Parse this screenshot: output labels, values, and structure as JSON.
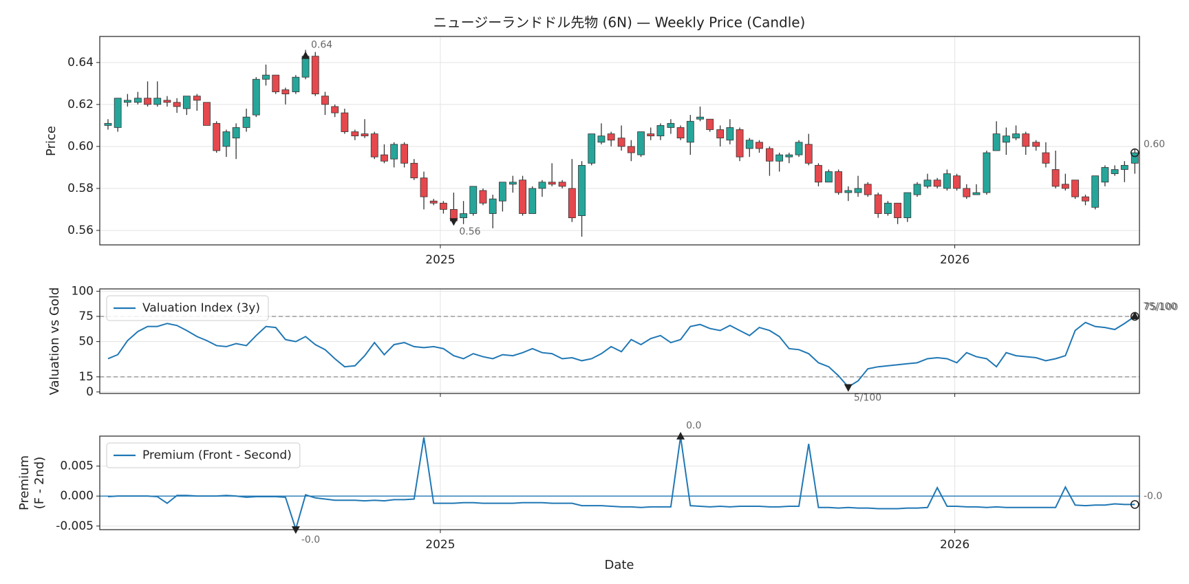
{
  "chart_data": [
    {
      "type": "candlestick",
      "title": "ニュージーランドドル先物 (6N) — Weekly Price (Candle)",
      "ylabel": "Price",
      "x": [
        2024.354,
        2024.373,
        2024.392,
        2024.412,
        2024.431,
        2024.45,
        2024.469,
        2024.488,
        2024.507,
        2024.527,
        2024.546,
        2024.565,
        2024.584,
        2024.603,
        2024.623,
        2024.642,
        2024.661,
        2024.68,
        2024.699,
        2024.719,
        2024.738,
        2024.757,
        2024.776,
        2024.795,
        2024.814,
        2024.834,
        2024.853,
        2024.872,
        2024.891,
        2024.91,
        2024.93,
        2024.949,
        2024.968,
        2024.987,
        2025.006,
        2025.026,
        2025.045,
        2025.064,
        2025.083,
        2025.102,
        2025.121,
        2025.141,
        2025.16,
        2025.179,
        2025.198,
        2025.217,
        2025.237,
        2025.256,
        2025.275,
        2025.294,
        2025.313,
        2025.332,
        2025.352,
        2025.371,
        2025.39,
        2025.409,
        2025.428,
        2025.448,
        2025.467,
        2025.486,
        2025.505,
        2025.524,
        2025.544,
        2025.563,
        2025.582,
        2025.601,
        2025.62,
        2025.64,
        2025.659,
        2025.678,
        2025.697,
        2025.716,
        2025.735,
        2025.755,
        2025.774,
        2025.793,
        2025.812,
        2025.831,
        2025.851,
        2025.87,
        2025.889,
        2025.908,
        2025.927,
        2025.947,
        2025.966,
        2025.985,
        2026.004,
        2026.023,
        2026.042,
        2026.062,
        2026.081,
        2026.1,
        2026.119,
        2026.138,
        2026.158,
        2026.177,
        2026.196,
        2026.215,
        2026.234,
        2026.254,
        2026.273,
        2026.292,
        2026.311,
        2026.33,
        2026.35
      ],
      "open": [
        0.61,
        0.609,
        0.621,
        0.621,
        0.623,
        0.62,
        0.622,
        0.621,
        0.618,
        0.624,
        0.621,
        0.611,
        0.6,
        0.604,
        0.609,
        0.615,
        0.632,
        0.634,
        0.627,
        0.626,
        0.633,
        0.643,
        0.624,
        0.619,
        0.616,
        0.607,
        0.606,
        0.606,
        0.596,
        0.594,
        0.601,
        0.592,
        0.585,
        0.574,
        0.573,
        0.57,
        0.566,
        0.568,
        0.579,
        0.568,
        0.574,
        0.582,
        0.584,
        0.568,
        0.58,
        0.583,
        0.583,
        0.58,
        0.567,
        0.592,
        0.602,
        0.606,
        0.604,
        0.6,
        0.596,
        0.606,
        0.605,
        0.609,
        0.609,
        0.602,
        0.613,
        0.613,
        0.608,
        0.603,
        0.608,
        0.599,
        0.602,
        0.599,
        0.593,
        0.595,
        0.596,
        0.601,
        0.591,
        0.583,
        0.588,
        0.578,
        0.578,
        0.582,
        0.577,
        0.568,
        0.573,
        0.566,
        0.577,
        0.581,
        0.584,
        0.58,
        0.586,
        0.58,
        0.577,
        0.578,
        0.598,
        0.602,
        0.604,
        0.606,
        0.602,
        0.597,
        0.589,
        0.582,
        0.584,
        0.576,
        0.571,
        0.583,
        0.587,
        0.589,
        0.592
      ],
      "high": [
        0.613,
        0.623,
        0.625,
        0.626,
        0.631,
        0.631,
        0.624,
        0.623,
        0.624,
        0.625,
        0.621,
        0.612,
        0.608,
        0.611,
        0.618,
        0.633,
        0.639,
        0.634,
        0.628,
        0.634,
        0.646,
        0.645,
        0.626,
        0.62,
        0.618,
        0.608,
        0.613,
        0.607,
        0.601,
        0.602,
        0.602,
        0.594,
        0.588,
        0.575,
        0.574,
        0.578,
        0.574,
        0.581,
        0.58,
        0.577,
        0.583,
        0.586,
        0.586,
        0.581,
        0.584,
        0.592,
        0.584,
        0.594,
        0.593,
        0.606,
        0.611,
        0.607,
        0.61,
        0.603,
        0.607,
        0.609,
        0.611,
        0.613,
        0.61,
        0.615,
        0.619,
        0.613,
        0.61,
        0.613,
        0.609,
        0.604,
        0.603,
        0.6,
        0.597,
        0.597,
        0.603,
        0.606,
        0.592,
        0.589,
        0.589,
        0.581,
        0.586,
        0.583,
        0.578,
        0.574,
        0.573,
        0.578,
        0.583,
        0.587,
        0.585,
        0.589,
        0.587,
        0.582,
        0.582,
        0.598,
        0.612,
        0.609,
        0.61,
        0.607,
        0.603,
        0.602,
        0.598,
        0.587,
        0.584,
        0.577,
        0.586,
        0.591,
        0.591,
        0.593,
        0.599
      ],
      "low": [
        0.608,
        0.607,
        0.619,
        0.62,
        0.619,
        0.619,
        0.619,
        0.616,
        0.615,
        0.617,
        0.61,
        0.597,
        0.595,
        0.594,
        0.607,
        0.614,
        0.629,
        0.625,
        0.62,
        0.625,
        0.632,
        0.624,
        0.615,
        0.614,
        0.606,
        0.603,
        0.604,
        0.594,
        0.592,
        0.59,
        0.59,
        0.584,
        0.57,
        0.572,
        0.568,
        0.564,
        0.563,
        0.567,
        0.572,
        0.561,
        0.569,
        0.578,
        0.567,
        0.568,
        0.576,
        0.581,
        0.58,
        0.564,
        0.557,
        0.591,
        0.601,
        0.6,
        0.598,
        0.593,
        0.595,
        0.603,
        0.603,
        0.606,
        0.603,
        0.596,
        0.612,
        0.607,
        0.6,
        0.601,
        0.593,
        0.595,
        0.597,
        0.586,
        0.588,
        0.592,
        0.595,
        0.591,
        0.581,
        0.583,
        0.577,
        0.574,
        0.576,
        0.576,
        0.566,
        0.567,
        0.563,
        0.564,
        0.576,
        0.58,
        0.58,
        0.579,
        0.579,
        0.575,
        0.577,
        0.577,
        0.598,
        0.596,
        0.603,
        0.596,
        0.598,
        0.59,
        0.58,
        0.579,
        0.575,
        0.572,
        0.57,
        0.581,
        0.586,
        0.583,
        0.587
      ],
      "close": [
        0.611,
        0.623,
        0.622,
        0.623,
        0.62,
        0.623,
        0.621,
        0.619,
        0.624,
        0.622,
        0.61,
        0.598,
        0.607,
        0.609,
        0.614,
        0.632,
        0.634,
        0.626,
        0.625,
        0.633,
        0.643,
        0.625,
        0.62,
        0.616,
        0.607,
        0.605,
        0.605,
        0.595,
        0.593,
        0.601,
        0.592,
        0.585,
        0.576,
        0.573,
        0.57,
        0.5645,
        0.568,
        0.581,
        0.573,
        0.575,
        0.583,
        0.583,
        0.568,
        0.58,
        0.583,
        0.582,
        0.581,
        0.566,
        0.591,
        0.606,
        0.605,
        0.603,
        0.6,
        0.597,
        0.607,
        0.605,
        0.61,
        0.611,
        0.604,
        0.612,
        0.614,
        0.608,
        0.604,
        0.609,
        0.595,
        0.603,
        0.599,
        0.593,
        0.596,
        0.596,
        0.602,
        0.592,
        0.583,
        0.588,
        0.578,
        0.579,
        0.58,
        0.577,
        0.568,
        0.573,
        0.566,
        0.578,
        0.582,
        0.584,
        0.581,
        0.587,
        0.58,
        0.576,
        0.578,
        0.597,
        0.606,
        0.605,
        0.606,
        0.6,
        0.6,
        0.592,
        0.581,
        0.58,
        0.576,
        0.574,
        0.586,
        0.59,
        0.589,
        0.591,
        0.597
      ],
      "up_color": "#26a69a",
      "down_color": "#e5484d",
      "xlim": [
        2024.338,
        2026.359
      ],
      "xticks": [
        2025,
        2026
      ],
      "ylim": [
        0.5531,
        0.6524
      ],
      "yticks": [
        0.56,
        0.58,
        {
          "value": 0.6,
          "label": "0.60"
        },
        0.62,
        0.64
      ],
      "grid": true,
      "annotations": {
        "max": "0.64",
        "min": "0.56",
        "last": "0.60"
      }
    },
    {
      "type": "line",
      "ylabel": "Valuation vs Gold",
      "series": [
        {
          "name": "Valuation Index (3y)",
          "color": "#1f77b4",
          "values": [
            33,
            37,
            51,
            60,
            65,
            65,
            68,
            66,
            61,
            55,
            51,
            46,
            45,
            48,
            46,
            56,
            65,
            64,
            52,
            50,
            55,
            47,
            42,
            33,
            25,
            26,
            36,
            49,
            37,
            47,
            49,
            45,
            44,
            45,
            43,
            36,
            33,
            38,
            35,
            33,
            37,
            36,
            39,
            43,
            39,
            38,
            33,
            34,
            31,
            33,
            38,
            45,
            40,
            52,
            47,
            53,
            56,
            49,
            52,
            65,
            67,
            63,
            61,
            66,
            61,
            56,
            64,
            61,
            55,
            43,
            42,
            38,
            29,
            25,
            16,
            5,
            11,
            23,
            25,
            26,
            27,
            28,
            29,
            33,
            34,
            33,
            29,
            39,
            35,
            33,
            25,
            39,
            36,
            35,
            34,
            31,
            33,
            36,
            61,
            69,
            65,
            64,
            62,
            68,
            75
          ]
        }
      ],
      "ylim": [
        -1.5,
        102.3
      ],
      "yticks": [
        0,
        15,
        50,
        75,
        100
      ],
      "hlines": [
        75,
        15
      ],
      "hline_style": "dashed",
      "hline_color": "#888888",
      "grid": true,
      "legend": "upper left",
      "annotations": {
        "min": "5/100",
        "max": "75/100",
        "last": "75/100"
      }
    },
    {
      "type": "line",
      "ylabel": [
        "Premium",
        "(F - 2nd)"
      ],
      "xlabel": "Date",
      "series": [
        {
          "name": "Premium (Front - Second)",
          "color": "#1f77b4",
          "values": [
            -0.0001,
            0,
            0,
            0,
            0,
            -0.0001,
            -0.0012,
            0.0001,
            0.0001,
            0,
            0,
            0,
            0.0001,
            0,
            -0.0002,
            -0.0001,
            -0.0001,
            -0.0001,
            -0.0002,
            -0.0055,
            0.0002,
            -0.0003,
            -0.0005,
            -0.0007,
            -0.0007,
            -0.0007,
            -0.0008,
            -0.0007,
            -0.0008,
            -0.0006,
            -0.0006,
            -0.0005,
            0.0098,
            -0.0012,
            -0.0012,
            -0.0012,
            -0.0011,
            -0.0011,
            -0.0012,
            -0.0012,
            -0.0012,
            -0.0012,
            -0.0011,
            -0.0011,
            -0.0011,
            -0.0012,
            -0.0012,
            -0.0012,
            -0.0016,
            -0.0016,
            -0.0016,
            -0.0017,
            -0.0018,
            -0.0018,
            -0.0019,
            -0.0018,
            -0.0018,
            -0.0018,
            0.0099,
            -0.0016,
            -0.0017,
            -0.0018,
            -0.0017,
            -0.0018,
            -0.0017,
            -0.0017,
            -0.0017,
            -0.0018,
            -0.0018,
            -0.0017,
            -0.0017,
            0.0087,
            -0.0019,
            -0.0019,
            -0.002,
            -0.0019,
            -0.002,
            -0.002,
            -0.0021,
            -0.0021,
            -0.0021,
            -0.002,
            -0.002,
            -0.0019,
            0.0014,
            -0.0017,
            -0.0017,
            -0.0018,
            -0.0018,
            -0.0019,
            -0.0018,
            -0.0019,
            -0.0019,
            -0.0019,
            -0.0019,
            -0.0019,
            -0.0019,
            0.0015,
            -0.0015,
            -0.0016,
            -0.0015,
            -0.0015,
            -0.0013,
            -0.0014,
            -0.0014
          ]
        }
      ],
      "xticks": [
        2025,
        2026
      ],
      "ylim": [
        -0.0056,
        0.01
      ],
      "yticks": [
        -0.005,
        {
          "value": 0,
          "label": "0.000"
        },
        0.005
      ],
      "hlines": [
        0
      ],
      "hline_style": "solid",
      "hline_color": "#1f77b4",
      "grid": true,
      "legend": "upper left",
      "annotations": {
        "max": "0.0",
        "min": "-0.0",
        "last": "-0.0"
      }
    }
  ]
}
